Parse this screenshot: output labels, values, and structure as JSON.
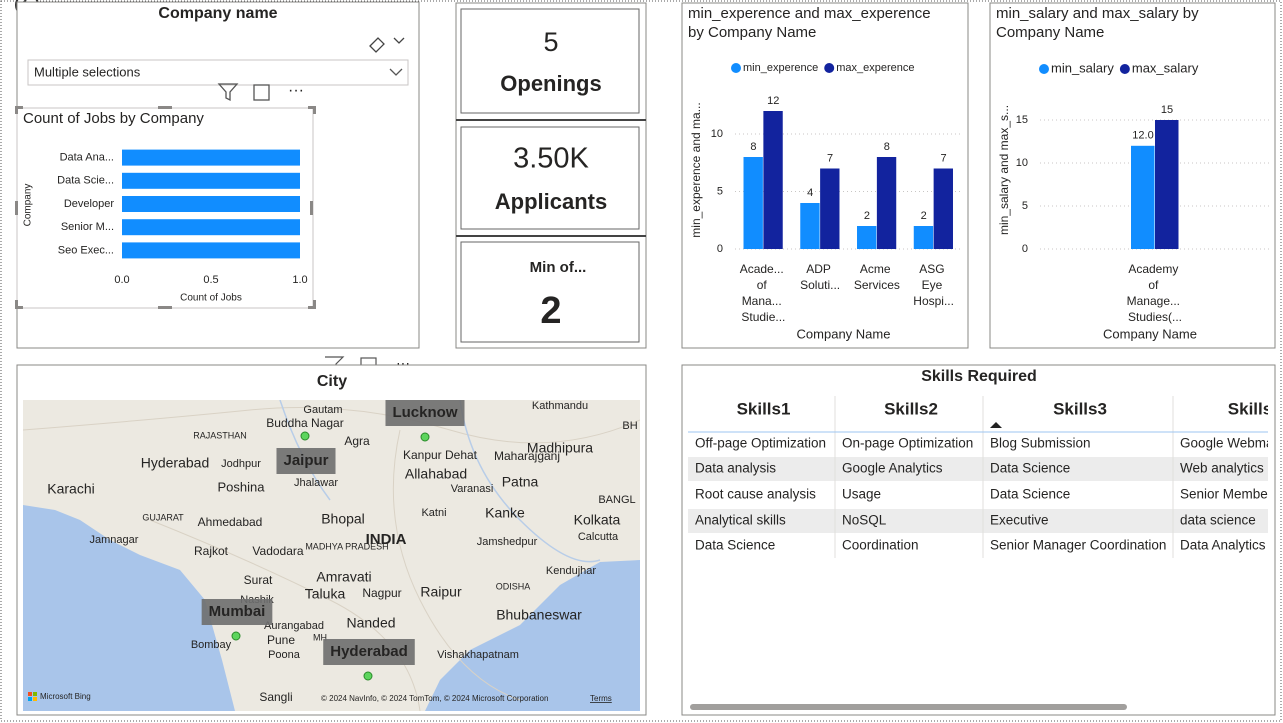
{
  "slicer": {
    "title": "Company name",
    "selection": "Multiple selections"
  },
  "cards": [
    {
      "value": "5",
      "label": "Openings"
    },
    {
      "value": "3.50K",
      "label": "Applicants"
    },
    {
      "label": "Min of...",
      "value": "2"
    }
  ],
  "chart_data": [
    {
      "type": "barh",
      "title": "Count of Jobs by Company",
      "categories": [
        "Data Ana...",
        "Data Scie...",
        "Developer",
        "Senior M...",
        "Seo Exec..."
      ],
      "values": [
        1,
        1,
        1,
        1,
        1
      ],
      "color": "#118dff",
      "xlim": [
        0,
        1
      ],
      "xticks": [
        {
          "value": 0,
          "label": "0.0"
        },
        {
          "value": 0.5,
          "label": "0.5"
        },
        {
          "value": 1,
          "label": "1.0"
        }
      ],
      "x_label": "Count of Jobs",
      "y_label": "Company"
    },
    {
      "type": "bar",
      "title": "min_experence and max_experence by Company Name",
      "categories": [
        "Acade... of Mana... Studie...",
        "ADP Soluti...",
        "Acme Services",
        "ASG Eye Hospi..."
      ],
      "series": [
        {
          "name": "min_experence",
          "color": "#118dff",
          "values": [
            8,
            4,
            2,
            2
          ]
        },
        {
          "name": "max_experence",
          "color": "#12239e",
          "values": [
            12,
            7,
            8,
            7
          ]
        }
      ],
      "ylim": [
        0,
        14
      ],
      "yticks": [
        0,
        5,
        10
      ],
      "grid": true,
      "legend": "top-left",
      "x_label": "Company Name",
      "y_label": "min_experence and ma..."
    },
    {
      "type": "bar",
      "title": "min_salary and max_salary by Company Name",
      "categories": [
        "Academy of Manage... Studies(..."
      ],
      "series": [
        {
          "name": "min_salary",
          "color": "#118dff",
          "values": [
            12
          ],
          "value_labels": [
            "12.0"
          ]
        },
        {
          "name": "max_salary",
          "color": "#12239e",
          "values": [
            15
          ]
        }
      ],
      "ylim": [
        0,
        17
      ],
      "yticks": [
        0,
        5,
        10,
        15
      ],
      "grid": true,
      "legend": "top-left",
      "x_label": "Company Name",
      "y_label": "min_salary and max_s..."
    }
  ],
  "map": {
    "title": "City",
    "cities": [
      "Lucknow",
      "Jaipur",
      "Mumbai",
      "Hyderabad"
    ],
    "places": [
      "Gautam",
      "Buddha Nagar",
      "Kathmandu",
      "RAJASTHAN",
      "Agra",
      "Maharajganj",
      "Hyderabad",
      "Jodhpur",
      "Kanpur Dehat",
      "Madhipura",
      "Jhalawar",
      "Allahabad",
      "Patna",
      "Karachi",
      "Poshina",
      "Varanasi",
      "GUJARAT",
      "Ahmedabad",
      "Bhopal",
      "Katni",
      "Kanke",
      "Kolkata",
      "Jamnagar",
      "MADHYA PRADESH",
      "INDIA",
      "Jamshedpur",
      "Calcutta",
      "Rajkot",
      "Vadodara",
      "Kendujhar",
      "Surat",
      "Amravati",
      "ODISHA",
      "Nashik",
      "Taluka",
      "Nagpur",
      "Raipur",
      "Bhubaneswar",
      "Aurangabad",
      "Nanded",
      "Pune",
      "MH",
      "Poona",
      "Bombay",
      "Vishakhapatnam",
      "Sangli",
      "BANGL",
      "BH"
    ],
    "provider": "Microsoft Bing",
    "attribution": "© 2024 NavInfo, © 2024 TomTom, © 2024 Microsoft Corporation",
    "terms": "Terms"
  },
  "table": {
    "title": "Skills Required",
    "header": [
      "Skills1",
      "Skills2",
      "Skills3",
      "Skills"
    ],
    "rows": [
      [
        "Off-page Optimization",
        "On-page Optimization",
        "Blog Submission",
        "Google Webma"
      ],
      [
        "Data analysis",
        "Google Analytics",
        "Data Science",
        "Web analytics"
      ],
      [
        "Root cause analysis",
        "Usage",
        "Data Science",
        "Senior Membe"
      ],
      [
        "Analytical skills",
        "NoSQL",
        "Executive",
        "data science"
      ],
      [
        "Data Science",
        "Coordination",
        "Senior Manager Coordination",
        "Data Analytics"
      ]
    ]
  }
}
